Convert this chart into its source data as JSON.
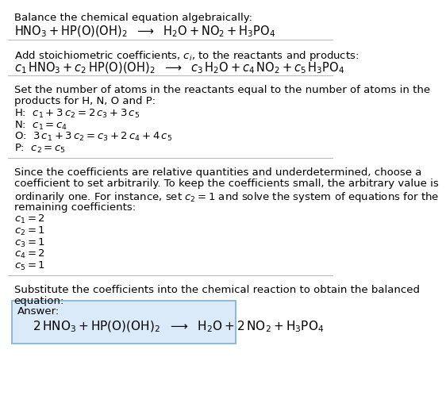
{
  "title": "Balance the chemical equation algebraically:",
  "equation_line": "$\\mathrm{HNO_3 + HP(O)(OH)_2}$  $\\longrightarrow$  $\\mathrm{H_2O + NO_2 + H_3PO_4}$",
  "section2_intro": "Add stoichiometric coefficients, $c_i$, to the reactants and products:",
  "section2_eq": "$c_1\\,\\mathrm{HNO_3} + c_2\\,\\mathrm{HP(O)(OH)_2}$  $\\longrightarrow$  $c_3\\,\\mathrm{H_2O} + c_4\\,\\mathrm{NO_2} + c_5\\,\\mathrm{H_3PO_4}$",
  "section3_intro_1": "Set the number of atoms in the reactants equal to the number of atoms in the",
  "section3_intro_2": "products for H, N, O and P:",
  "section3_lines": [
    "$\\mathrm{H}$:  $c_1 + 3\\,c_2 = 2\\,c_3 + 3\\,c_5$",
    "$\\mathrm{N}$:  $c_1 = c_4$",
    "$\\mathrm{O}$:  $3\\,c_1 + 3\\,c_2 = c_3 + 2\\,c_4 + 4\\,c_5$",
    "$\\mathrm{P}$:  $c_2 = c_5$"
  ],
  "section4_intro_1": "Since the coefficients are relative quantities and underdetermined, choose a",
  "section4_intro_2": "coefficient to set arbitrarily. To keep the coefficients small, the arbitrary value is",
  "section4_intro_3": "ordinarily one. For instance, set $c_2 = 1$ and solve the system of equations for the",
  "section4_intro_4": "remaining coefficients:",
  "section4_lines": [
    "$c_1 = 2$",
    "$c_2 = 1$",
    "$c_3 = 1$",
    "$c_4 = 2$",
    "$c_5 = 1$"
  ],
  "section5_intro_1": "Substitute the coefficients into the chemical reaction to obtain the balanced",
  "section5_intro_2": "equation:",
  "answer_label": "Answer:",
  "answer_eq": "$2\\,\\mathrm{HNO_3 + HP(O)(OH)_2}$  $\\longrightarrow$  $\\mathrm{H_2O} + 2\\,\\mathrm{NO_2 + H_3PO_4}$",
  "bg_color": "#ffffff",
  "text_color": "#000000",
  "answer_box_bg": "#dbeaf8",
  "answer_box_edge": "#7ab0d4",
  "sep_line_color": "#bbbbbb",
  "font_size": 9.5,
  "font_size_eq": 10.5,
  "font_size_answer": 11
}
